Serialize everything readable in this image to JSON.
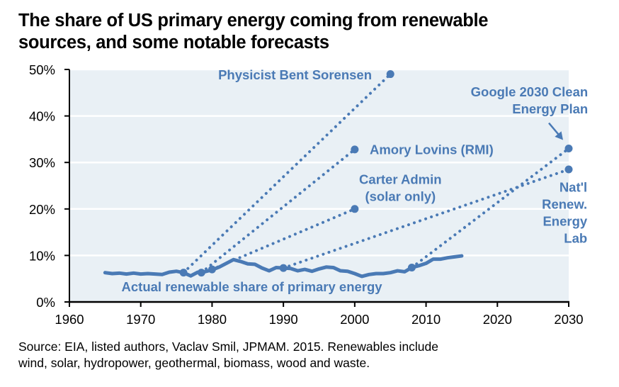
{
  "title": "The share of US primary energy coming from renewable sources, and some notable forecasts",
  "title_lines": [
    "The share of US primary energy coming from renewable",
    "sources, and some notable forecasts"
  ],
  "source_lines": [
    "Source: EIA, listed authors, Vaclav Smil, JPMAM. 2015. Renewables include",
    "wind, solar, hydropower, geothermal, biomass, wood and waste."
  ],
  "colors": {
    "series": "#4a7ab5",
    "plot_background": "#e9f0f5",
    "gridline": "#ffffff",
    "axis": "#000000"
  },
  "chart_data": {
    "type": "line",
    "title": "The share of US primary energy coming from renewable sources, and some notable forecasts",
    "xlabel": "",
    "ylabel": "",
    "xlim": [
      1960,
      2030
    ],
    "ylim": [
      0,
      50
    ],
    "x_ticks": [
      1960,
      1970,
      1980,
      1990,
      2000,
      2010,
      2020,
      2030
    ],
    "x_tick_labels": [
      "1960",
      "1970",
      "1980",
      "1990",
      "2000",
      "2010",
      "2020",
      "2030"
    ],
    "y_ticks": [
      0,
      10,
      20,
      30,
      40,
      50
    ],
    "y_tick_labels": [
      "0%",
      "10%",
      "20%",
      "30%",
      "40%",
      "50%"
    ],
    "grid": "horizontal",
    "legend": "none",
    "series": [
      {
        "name": "Actual renewable share of primary energy",
        "style": "solid",
        "label": "Actual renewable share of primary energy",
        "x": [
          1965,
          1966,
          1967,
          1968,
          1969,
          1970,
          1971,
          1972,
          1973,
          1974,
          1975,
          1976,
          1977,
          1978,
          1979,
          1980,
          1981,
          1982,
          1983,
          1984,
          1985,
          1986,
          1987,
          1988,
          1989,
          1990,
          1991,
          1992,
          1993,
          1994,
          1995,
          1996,
          1997,
          1998,
          1999,
          2000,
          2001,
          2002,
          2003,
          2004,
          2005,
          2006,
          2007,
          2008,
          2009,
          2010,
          2011,
          2012,
          2013,
          2014,
          2015
        ],
        "values": [
          6.3,
          6.1,
          6.2,
          6.0,
          6.2,
          6.0,
          6.1,
          6.0,
          5.9,
          6.4,
          6.6,
          6.3,
          5.6,
          6.4,
          6.5,
          6.9,
          7.5,
          8.3,
          9.1,
          8.7,
          8.2,
          8.1,
          7.3,
          6.7,
          7.4,
          7.3,
          7.2,
          6.7,
          7.0,
          6.6,
          7.1,
          7.5,
          7.4,
          6.7,
          6.6,
          6.1,
          5.5,
          5.9,
          6.1,
          6.1,
          6.3,
          6.7,
          6.5,
          7.4,
          7.8,
          8.3,
          9.2,
          9.2,
          9.5,
          9.7,
          9.9
        ]
      },
      {
        "name": "Physicist Bent Sorensen",
        "style": "dotted",
        "label": "Physicist Bent Sorensen",
        "x": [
          1976,
          2005
        ],
        "values": [
          6.3,
          49
        ]
      },
      {
        "name": "Amory Lovins (RMI)",
        "style": "dotted",
        "label": "Amory Lovins (RMI)",
        "x": [
          1978.5,
          2000
        ],
        "values": [
          6.3,
          32.8
        ]
      },
      {
        "name": "Carter Admin (solar only)",
        "style": "dotted",
        "label": "Carter Admin (solar only)",
        "x": [
          1980,
          2000
        ],
        "values": [
          7.0,
          20
        ]
      },
      {
        "name": "Nat'l Renew. Energy Lab",
        "style": "dotted",
        "label": "Nat'l Renew. Energy Lab",
        "x": [
          1990,
          2030
        ],
        "values": [
          7.3,
          28.5
        ]
      },
      {
        "name": "Google 2030 Clean Energy Plan",
        "style": "dotted",
        "label": "Google 2030 Clean Energy Plan",
        "x": [
          2008,
          2030
        ],
        "values": [
          7.4,
          33
        ]
      }
    ],
    "annotations": [
      {
        "text_lines": [
          "Physicist Bent Sorensen"
        ],
        "anchor": "end",
        "x": 2002.4,
        "y": 47.9
      },
      {
        "text_lines": [
          "Amory Lovins (RMI)"
        ],
        "anchor": "start",
        "x": 2002.1,
        "y": 31.8
      },
      {
        "text_lines": [
          "Carter Admin",
          "(solar only)"
        ],
        "anchor": "middle",
        "x": 2006.4,
        "y": 25.4
      },
      {
        "text_lines": [
          "Google 2030 Clean",
          "Energy Plan"
        ],
        "anchor": "end",
        "x": 2032.7,
        "y": 44.2
      },
      {
        "text_lines": [
          "Nat'l",
          "Renew.",
          "Energy",
          "Lab"
        ],
        "anchor": "end",
        "x": 2032.6,
        "y": 23.7
      },
      {
        "text_lines": [
          "Actual renewable share of primary energy"
        ],
        "anchor": "start",
        "x": 1967.3,
        "y": 2.3
      }
    ]
  }
}
